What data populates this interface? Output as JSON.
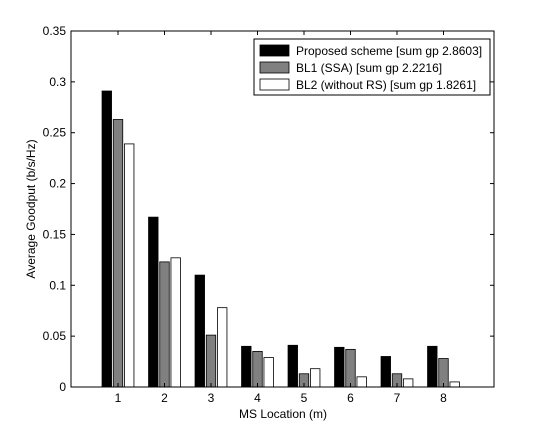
{
  "chart_data": {
    "type": "bar",
    "title": "",
    "xlabel": "MS Location (m)",
    "ylabel": "Average Goodput (b/s/Hz)",
    "categories": [
      "1",
      "2",
      "3",
      "4",
      "5",
      "6",
      "7",
      "8"
    ],
    "ylim": [
      0,
      0.35
    ],
    "yticks": [
      "0",
      "0.05",
      "0.1",
      "0.15",
      "0.2",
      "0.25",
      "0.3",
      "0.35"
    ],
    "grid": false,
    "legend_position": "top-right",
    "series": [
      {
        "name": "Proposed scheme [sum gp 2.8603]",
        "color": "#000000",
        "values": [
          0.291,
          0.167,
          0.11,
          0.04,
          0.041,
          0.039,
          0.03,
          0.04
        ]
      },
      {
        "name": "BL1 (SSA) [sum gp 2.2216]",
        "color": "#808080",
        "values": [
          0.263,
          0.123,
          0.051,
          0.035,
          0.013,
          0.037,
          0.013,
          0.028
        ]
      },
      {
        "name": "BL2 (without RS) [sum gp 1.8261]",
        "color": "#ffffff",
        "values": [
          0.239,
          0.127,
          0.078,
          0.029,
          0.018,
          0.01,
          0.008,
          0.005
        ]
      }
    ]
  }
}
